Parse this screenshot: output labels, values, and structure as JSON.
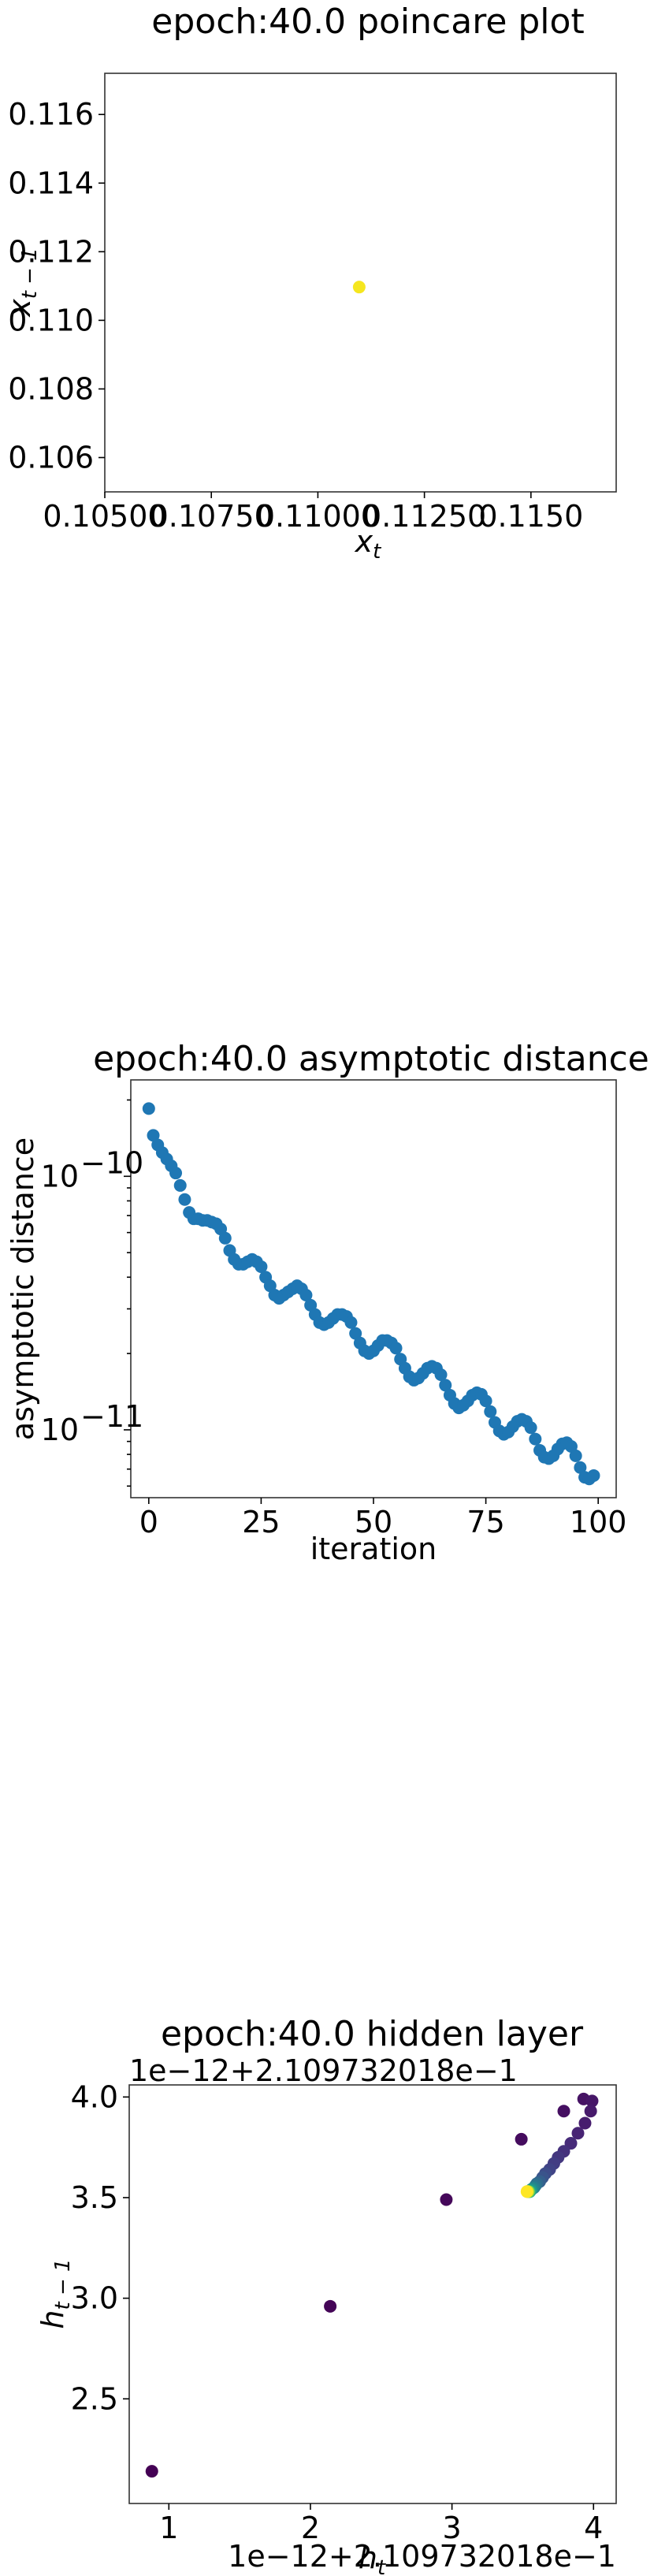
{
  "chart_data": [
    {
      "type": "scatter",
      "title": "epoch:40.0 poincare plot",
      "xlabel_base": "x",
      "xlabel_sub": "t",
      "ylabel_base": "x",
      "ylabel_sub": "t − 1",
      "xlim": [
        0.105,
        0.117
      ],
      "ylim": [
        0.105,
        0.1172
      ],
      "xticks": [
        "0.10500",
        "0.10750",
        "0.11000",
        "0.11250",
        "0.1150"
      ],
      "xtick_values": [
        0.105,
        0.1075,
        0.11,
        0.1125,
        0.115
      ],
      "yticks": [
        "0.116",
        "0.114",
        "0.112",
        "0.110",
        "0.108",
        "0.106"
      ],
      "ytick_values": [
        0.116,
        0.114,
        0.112,
        0.11,
        0.108,
        0.106
      ],
      "points": [
        {
          "x": 0.11097,
          "y": 0.11097
        }
      ],
      "color": "#f5e61f"
    },
    {
      "type": "scatter",
      "title": "epoch:40.0 asymptotic distance",
      "xlabel": "iteration",
      "ylabel": "asymptotic distance",
      "yscale": "log",
      "xlim": [
        -4,
        104
      ],
      "ylim": [
        5.4e-12,
        2.4e-10
      ],
      "xticks": [
        "0",
        "25",
        "50",
        "75",
        "100"
      ],
      "xtick_values": [
        0,
        25,
        50,
        75,
        100
      ],
      "yticks": [
        {
          "value": 1e-10,
          "base": "10",
          "exp": "−10"
        },
        {
          "value": 1e-11,
          "base": "10",
          "exp": "−11"
        }
      ],
      "color": "#1f77b4",
      "y": [
        1.85e-10,
        1.45e-10,
        1.33e-10,
        1.24e-10,
        1.17e-10,
        1.1e-10,
        1.03e-10,
        9.2e-11,
        8.1e-11,
        7.2e-11,
        6.8e-11,
        6.8e-11,
        6.7e-11,
        6.7e-11,
        6.6e-11,
        6.5e-11,
        6.2e-11,
        5.7e-11,
        5.1e-11,
        4.7e-11,
        4.5e-11,
        4.5e-11,
        4.6e-11,
        4.7e-11,
        4.6e-11,
        4.4e-11,
        4e-11,
        3.7e-11,
        3.4e-11,
        3.3e-11,
        3.4e-11,
        3.5e-11,
        3.6e-11,
        3.7e-11,
        3.6e-11,
        3.4e-11,
        3.1e-11,
        2.85e-11,
        2.65e-11,
        2.6e-11,
        2.65e-11,
        2.75e-11,
        2.85e-11,
        2.85e-11,
        2.8e-11,
        2.65e-11,
        2.4e-11,
        2.2e-11,
        2.05e-11,
        2e-11,
        2.05e-11,
        2.15e-11,
        2.25e-11,
        2.25e-11,
        2.2e-11,
        2.1e-11,
        1.9e-11,
        1.75e-11,
        1.62e-11,
        1.57e-11,
        1.6e-11,
        1.67e-11,
        1.75e-11,
        1.78e-11,
        1.75e-11,
        1.65e-11,
        1.5e-11,
        1.37e-11,
        1.27e-11,
        1.22e-11,
        1.25e-11,
        1.3e-11,
        1.37e-11,
        1.4e-11,
        1.38e-11,
        1.3e-11,
        1.18e-11,
        1.07e-11,
        9.9e-12,
        9.6e-12,
        9.8e-12,
        1.03e-11,
        1.08e-11,
        1.1e-11,
        1.08e-11,
        1.02e-11,
        9.2e-12,
        8.3e-12,
        7.8e-12,
        7.7e-12,
        7.9e-12,
        8.4e-12,
        8.8e-12,
        8.9e-12,
        8.6e-12,
        7.9e-12,
        7.1e-12,
        6.5e-12,
        6.4e-12,
        6.6e-12
      ]
    },
    {
      "type": "scatter",
      "title": "epoch:40.0 hidden layer",
      "xlabel_base": "h",
      "xlabel_sub": "t",
      "ylabel_base": "h",
      "ylabel_sub": "t − 1",
      "x_offset_text": "1e−12+2.109732018e−1",
      "y_offset_text": "1e−12+2.109732018e−1",
      "xlim": [
        0.72,
        4.16
      ],
      "ylim": [
        1.98,
        4.06
      ],
      "xticks": [
        "1",
        "2",
        "3",
        "4"
      ],
      "xtick_values": [
        1,
        2,
        3,
        4
      ],
      "yticks": [
        "4.0",
        "3.5",
        "3.0",
        "2.5"
      ],
      "ytick_values": [
        4.0,
        3.5,
        3.0,
        2.5
      ],
      "colormap": "viridis",
      "points": [
        {
          "x": 0.88,
          "y": 2.14,
          "c": 0.0
        },
        {
          "x": 2.14,
          "y": 2.96,
          "c": 0.01
        },
        {
          "x": 2.96,
          "y": 3.49,
          "c": 0.02
        },
        {
          "x": 3.49,
          "y": 3.79,
          "c": 0.03
        },
        {
          "x": 3.79,
          "y": 3.93,
          "c": 0.04
        },
        {
          "x": 3.93,
          "y": 3.99,
          "c": 0.05
        },
        {
          "x": 3.99,
          "y": 3.98,
          "c": 0.06
        },
        {
          "x": 3.98,
          "y": 3.93,
          "c": 0.07
        },
        {
          "x": 3.94,
          "y": 3.87,
          "c": 0.08
        },
        {
          "x": 3.89,
          "y": 3.82,
          "c": 0.1
        },
        {
          "x": 3.84,
          "y": 3.77,
          "c": 0.12
        },
        {
          "x": 3.79,
          "y": 3.73,
          "c": 0.14
        },
        {
          "x": 3.75,
          "y": 3.7,
          "c": 0.16
        },
        {
          "x": 3.72,
          "y": 3.67,
          "c": 0.18
        },
        {
          "x": 3.69,
          "y": 3.64,
          "c": 0.2
        },
        {
          "x": 3.66,
          "y": 3.62,
          "c": 0.23
        },
        {
          "x": 3.64,
          "y": 3.6,
          "c": 0.26
        },
        {
          "x": 3.62,
          "y": 3.58,
          "c": 0.3
        },
        {
          "x": 3.6,
          "y": 3.57,
          "c": 0.34
        },
        {
          "x": 3.59,
          "y": 3.56,
          "c": 0.38
        },
        {
          "x": 3.58,
          "y": 3.55,
          "c": 0.42
        },
        {
          "x": 3.57,
          "y": 3.545,
          "c": 0.46
        },
        {
          "x": 3.56,
          "y": 3.54,
          "c": 0.5
        },
        {
          "x": 3.555,
          "y": 3.535,
          "c": 0.55
        },
        {
          "x": 3.55,
          "y": 3.53,
          "c": 0.6
        },
        {
          "x": 3.545,
          "y": 3.53,
          "c": 0.66
        },
        {
          "x": 3.54,
          "y": 3.53,
          "c": 0.72
        },
        {
          "x": 3.54,
          "y": 3.53,
          "c": 0.8
        },
        {
          "x": 3.535,
          "y": 3.53,
          "c": 0.88
        },
        {
          "x": 3.53,
          "y": 3.53,
          "c": 1.0
        }
      ]
    }
  ]
}
